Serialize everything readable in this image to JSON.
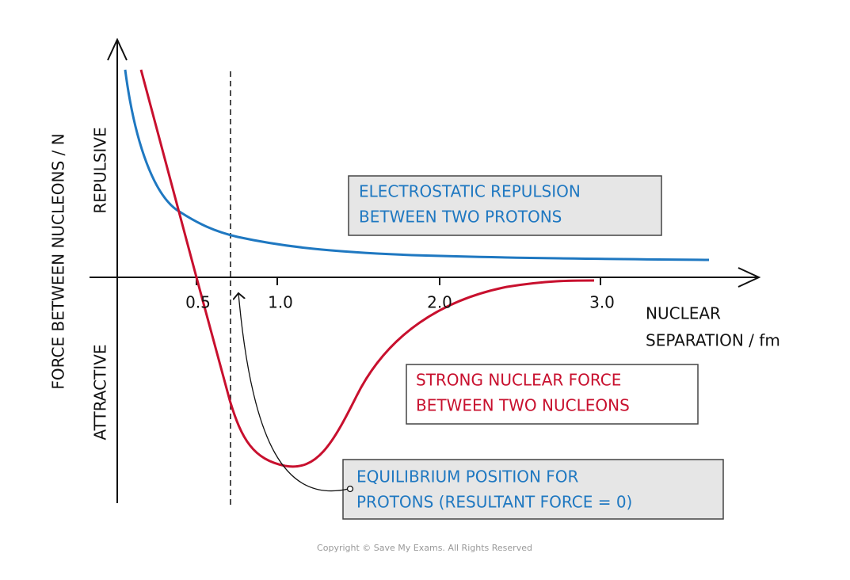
{
  "axes": {
    "y_label": "FORCE BETWEEN NUCLEONS / N",
    "repulsive": "REPULSIVE",
    "attractive": "ATTRACTIVE",
    "x_label": [
      "NUCLEAR",
      "SEPARATION / fm"
    ],
    "x_ticks": [
      "0.5",
      "1.0",
      "2.0",
      "3.0"
    ]
  },
  "annotations": {
    "electrostatic": [
      "ELECTROSTATIC REPULSION",
      "BETWEEN TWO PROTONS"
    ],
    "strong": [
      "STRONG NUCLEAR FORCE",
      "BETWEEN TWO NUCLEONS"
    ],
    "equilibrium": [
      "EQUILIBRIUM POSITION FOR",
      "PROTONS (RESULTANT FORCE = 0)"
    ]
  },
  "copyright": "Copyright © Save My Exams. All Rights Reserved"
}
